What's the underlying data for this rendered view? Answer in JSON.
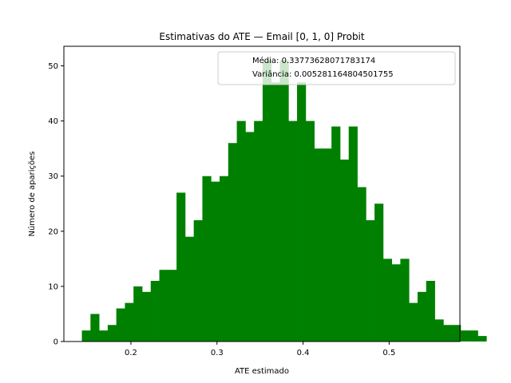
{
  "chart_data": {
    "type": "bar",
    "title": "Estimativas do ATE — Email [0, 1, 0] Probit",
    "xlabel": "ATE estimado",
    "ylabel": "Número de aparições",
    "xlim": [
      0.1221,
      0.5822
    ],
    "ylim": [
      0,
      53.55
    ],
    "grid": false,
    "bar_color": "#008000",
    "bin_start": 0.143,
    "bin_width": 0.01,
    "counts": [
      2,
      5,
      2,
      3,
      6,
      7,
      10,
      9,
      11,
      13,
      13,
      27,
      19,
      22,
      30,
      29,
      30,
      36,
      40,
      38,
      40,
      51,
      47,
      51,
      40,
      47,
      40,
      35,
      35,
      39,
      33,
      39,
      28,
      22,
      25,
      15,
      14,
      15,
      7,
      9,
      11,
      4,
      3,
      3,
      2,
      2,
      1,
      0,
      0,
      0,
      2
    ],
    "x_ticks": [
      0.2,
      0.3,
      0.4,
      0.5
    ],
    "x_tick_labels": [
      "0.2",
      "0.3",
      "0.4",
      "0.5"
    ],
    "y_ticks": [
      0,
      10,
      20,
      30,
      40,
      50
    ],
    "y_tick_labels": [
      "0",
      "10",
      "20",
      "30",
      "40",
      "50"
    ],
    "legend": {
      "position": "top-right",
      "lines": [
        "Média: 0.33773628071783174",
        "Variância: 0.005281164804501755"
      ]
    }
  }
}
